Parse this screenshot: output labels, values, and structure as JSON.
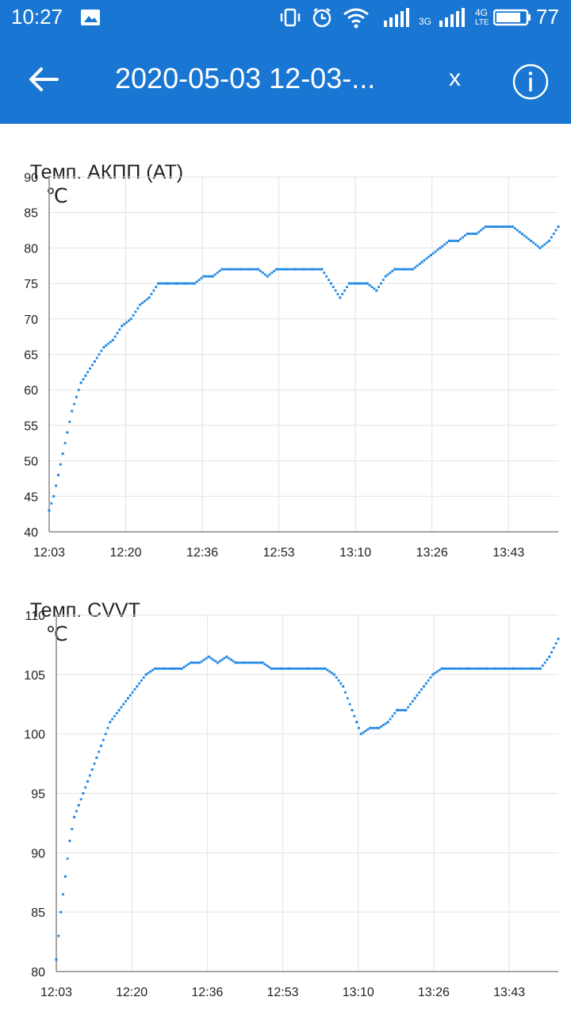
{
  "status_bar": {
    "time": "10:27",
    "battery": "77",
    "network_left": "3G",
    "network_right_top": "4G",
    "network_right_bottom": "LTE",
    "icons": [
      "image-icon",
      "vibrate-icon",
      "alarm-icon",
      "wifi-icon",
      "signal-icon",
      "signal-icon",
      "battery-icon"
    ]
  },
  "app_bar": {
    "back_icon": "arrow-left-icon",
    "title": "2020-05-03 12-03-...",
    "close_label": "x",
    "info_icon": "info-icon"
  },
  "charts": [
    {
      "title": "Темп. АКПП (AT)",
      "unit": "℃",
      "color": "#1e88e5",
      "x_labels": [
        "12:03",
        "12:20",
        "12:36",
        "12:53",
        "13:10",
        "13:26",
        "13:43"
      ],
      "y_labels": [
        "90",
        "85",
        "80",
        "75",
        "70",
        "65",
        "60",
        "55",
        "50",
        "45",
        "40"
      ]
    },
    {
      "title": "Темп. CVVT",
      "unit": "℃",
      "color": "#1e88e5",
      "x_labels": [
        "12:03",
        "12:20",
        "12:36",
        "12:53",
        "13:10",
        "13:26",
        "13:43"
      ],
      "y_labels": [
        "110",
        "105",
        "100",
        "95",
        "90",
        "85",
        "80"
      ]
    }
  ],
  "chart_data": [
    {
      "type": "scatter",
      "title": "Темп. АКПП (AT)",
      "ylabel": "℃",
      "xlabel": "",
      "x_unit": "minutes",
      "xlim": [
        0,
        112
      ],
      "ylim": [
        40,
        90
      ],
      "grid": true,
      "x_ticks": [
        "12:03",
        "12:20",
        "12:36",
        "12:53",
        "13:10",
        "13:26",
        "13:43"
      ],
      "series": [
        {
          "x": [
            0,
            1,
            2,
            3,
            4,
            5,
            6,
            7,
            8,
            10,
            12,
            14,
            16,
            18,
            20,
            22,
            24,
            26,
            28,
            30,
            32,
            34,
            36,
            38,
            40,
            42,
            44,
            46,
            48,
            50,
            52,
            54,
            56,
            58,
            60,
            62,
            64,
            66,
            68,
            70,
            72,
            74,
            76,
            78,
            80,
            82,
            84,
            86,
            88,
            90,
            92,
            94,
            96,
            98,
            100,
            102,
            104,
            106,
            108,
            110,
            112
          ],
          "y": [
            43,
            45,
            48,
            51,
            54,
            57,
            59,
            61,
            62,
            64,
            66,
            67,
            69,
            70,
            72,
            73,
            75,
            75,
            75,
            75,
            75,
            76,
            76,
            77,
            77,
            77,
            77,
            77,
            76,
            77,
            77,
            77,
            77,
            77,
            77,
            75,
            73,
            75,
            75,
            75,
            74,
            76,
            77,
            77,
            77,
            78,
            79,
            80,
            81,
            81,
            82,
            82,
            83,
            83,
            83,
            83,
            82,
            81,
            80,
            81,
            83
          ]
        }
      ]
    },
    {
      "type": "scatter",
      "title": "Темп. CVVT",
      "ylabel": "℃",
      "xlabel": "",
      "x_unit": "minutes",
      "xlim": [
        0,
        112
      ],
      "ylim": [
        80,
        110
      ],
      "grid": true,
      "x_ticks": [
        "12:03",
        "12:20",
        "12:36",
        "12:53",
        "13:10",
        "13:26",
        "13:43"
      ],
      "series": [
        {
          "x": [
            0,
            1,
            2,
            3,
            4,
            5,
            6,
            7,
            8,
            9,
            10,
            12,
            14,
            16,
            18,
            20,
            22,
            24,
            26,
            28,
            30,
            32,
            34,
            36,
            38,
            40,
            42,
            44,
            46,
            48,
            50,
            52,
            54,
            56,
            58,
            60,
            62,
            64,
            66,
            67,
            68,
            70,
            72,
            74,
            76,
            78,
            80,
            82,
            84,
            86,
            88,
            90,
            92,
            94,
            96,
            98,
            100,
            102,
            104,
            106,
            108,
            110,
            112
          ],
          "y": [
            81,
            85,
            88,
            91,
            93,
            94,
            95,
            96,
            97,
            98,
            99,
            101,
            102,
            103,
            104,
            105,
            105.5,
            105.5,
            105.5,
            105.5,
            106,
            106,
            106.5,
            106,
            106.5,
            106,
            106,
            106,
            106,
            105.5,
            105.5,
            105.5,
            105.5,
            105.5,
            105.5,
            105.5,
            105,
            104,
            102,
            101,
            100,
            100.5,
            100.5,
            101,
            102,
            102,
            103,
            104,
            105,
            105.5,
            105.5,
            105.5,
            105.5,
            105.5,
            105.5,
            105.5,
            105.5,
            105.5,
            105.5,
            105.5,
            105.5,
            106.5,
            108
          ]
        }
      ]
    }
  ]
}
